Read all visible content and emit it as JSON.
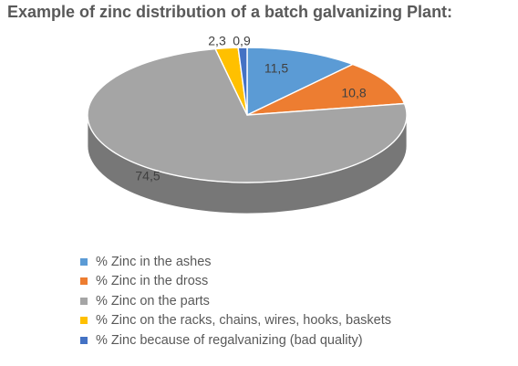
{
  "chart_data": {
    "type": "pie",
    "title": "Example of zinc distribution of a batch galvanizing Plant:",
    "three_d": true,
    "legend_position": "bottom",
    "slices": [
      {
        "label": "% Zinc in the ashes",
        "value": 11.5,
        "display": "11,5",
        "color": "#5B9BD5"
      },
      {
        "label": "% Zinc in the dross",
        "value": 10.8,
        "display": "10,8",
        "color": "#ED7D31"
      },
      {
        "label": "% Zinc on the parts",
        "value": 74.5,
        "display": "74,5",
        "color": "#A5A5A5"
      },
      {
        "label": "% Zinc on the racks, chains, wires, hooks, baskets",
        "value": 2.3,
        "display": "2,3",
        "color": "#FFC000"
      },
      {
        "label": "% Zinc because of regalvanizing (bad quality)",
        "value": 0.9,
        "display": "0,9",
        "color": "#4472C4"
      }
    ]
  }
}
